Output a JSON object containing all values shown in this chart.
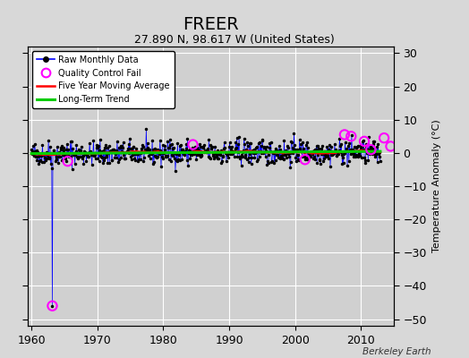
{
  "title": "FREER",
  "subtitle": "27.890 N, 98.617 W (United States)",
  "ylabel": "Temperature Anomaly (°C)",
  "credit": "Berkeley Earth",
  "xlim": [
    1959.5,
    2015
  ],
  "ylim": [
    -52,
    32
  ],
  "yticks": [
    -50,
    -40,
    -30,
    -20,
    -10,
    0,
    10,
    20,
    30
  ],
  "xticks": [
    1960,
    1970,
    1980,
    1990,
    2000,
    2010
  ],
  "bg_color": "#d8d8d8",
  "plot_bg_color": "#d0d0d0",
  "raw_color": "#0000ff",
  "raw_marker_color": "#000000",
  "qc_fail_color": "#ff00ff",
  "moving_avg_color": "#ff0000",
  "trend_color": "#00cc00",
  "seed": 42,
  "n_months": 636,
  "start_year": 1960,
  "outlier_idx": 38,
  "outlier_value": -46.0,
  "outlier_pre_value": -4.5,
  "qc_fail_times": [
    1963.17,
    1965.5,
    1984.5,
    2001.5,
    2007.5,
    2008.5,
    2010.5,
    2011.5,
    2013.5,
    2014.5
  ],
  "qc_fail_values": [
    -46.0,
    -2.5,
    2.5,
    -2.0,
    5.5,
    5.0,
    3.5,
    1.0,
    4.5,
    2.0
  ]
}
